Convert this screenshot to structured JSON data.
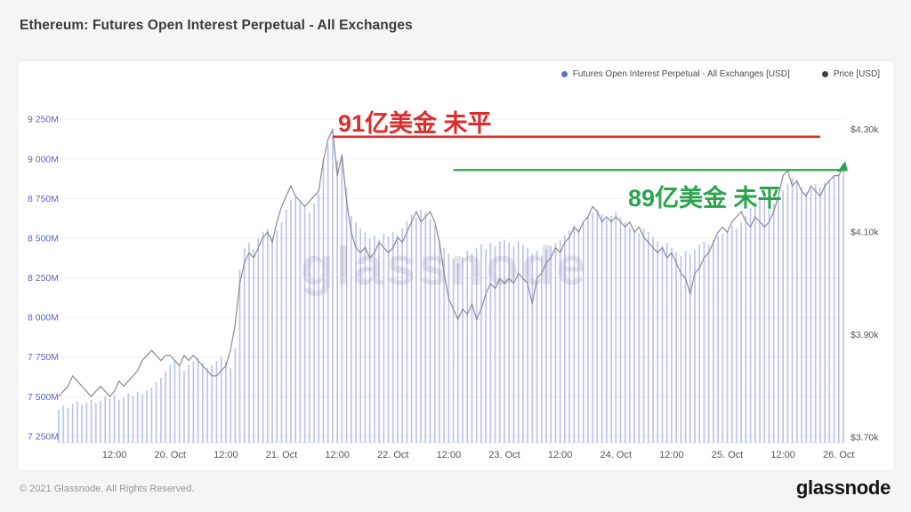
{
  "header": {
    "title": "Ethereum: Futures Open Interest Perpetual - All Exchanges"
  },
  "footer": {
    "copyright": "© 2021 Glassnode. All Rights Reserved.",
    "logo": "glassnode"
  },
  "colors": {
    "oi_bar": "#7c8cde",
    "price_line": "#8a8a93",
    "left_axis_label": "#5c63c8",
    "right_axis_label": "#55555a",
    "annotation_red": "#dd2c2c",
    "annotation_green": "#2aa54d",
    "gridline": "#f1f1f4"
  },
  "chart_data": {
    "type": "bar",
    "subtype": "bar+line combo, hourly time series",
    "title": "Ethereum: Futures Open Interest Perpetual - All Exchanges",
    "watermark": "glassnode",
    "x_start": "19. Oct 00:00",
    "x_step_hours": 1,
    "x_tick_labels": [
      {
        "h": 12,
        "label": "12:00"
      },
      {
        "h": 24,
        "label": "20. Oct"
      },
      {
        "h": 36,
        "label": "12:00"
      },
      {
        "h": 48,
        "label": "21. Oct"
      },
      {
        "h": 60,
        "label": "12:00"
      },
      {
        "h": 72,
        "label": "22. Oct"
      },
      {
        "h": 84,
        "label": "12:00"
      },
      {
        "h": 96,
        "label": "23. Oct"
      },
      {
        "h": 108,
        "label": "12:00"
      },
      {
        "h": 120,
        "label": "24. Oct"
      },
      {
        "h": 132,
        "label": "12:00"
      },
      {
        "h": 144,
        "label": "25. Oct"
      },
      {
        "h": 156,
        "label": "12:00"
      },
      {
        "h": 168,
        "label": "26. Oct"
      }
    ],
    "left_axis": {
      "unit": "M USD",
      "tick_labels": [
        "7 250M",
        "7 500M",
        "7 750M",
        "8 000M",
        "8 250M",
        "8 500M",
        "8 750M",
        "9 000M",
        "9 250M"
      ],
      "tick_values": [
        7250,
        7500,
        7750,
        8000,
        8250,
        8500,
        8750,
        9000,
        9250
      ],
      "range": [
        7210,
        9380
      ],
      "grid": true
    },
    "right_axis": {
      "unit": "k USD",
      "tick_labels": [
        "$3.70k",
        "$3.90k",
        "$4.10k",
        "$4.30k"
      ],
      "tick_values": [
        3.7,
        3.9,
        4.1,
        4.3
      ],
      "range": [
        3.69,
        4.36
      ],
      "grid": false
    },
    "legend_position": "top-right",
    "series": [
      {
        "name": "Futures Open Interest Perpetual - All Exchanges [USD]",
        "type": "bar",
        "axis": "left",
        "color": "#7c8cde",
        "unit": "M USD",
        "values": [
          7420,
          7445,
          7430,
          7455,
          7470,
          7450,
          7465,
          7480,
          7460,
          7475,
          7500,
          7490,
          7510,
          7480,
          7495,
          7520,
          7505,
          7530,
          7515,
          7540,
          7560,
          7590,
          7620,
          7660,
          7700,
          7730,
          7690,
          7665,
          7700,
          7720,
          7745,
          7710,
          7680,
          7700,
          7725,
          7750,
          7720,
          7680,
          7805,
          8300,
          8440,
          8470,
          8430,
          8500,
          8540,
          8560,
          8510,
          8550,
          8600,
          8680,
          8740,
          8760,
          8730,
          8700,
          8660,
          8720,
          8780,
          9000,
          9090,
          9140,
          8990,
          9030,
          8820,
          8640,
          8600,
          8560,
          8540,
          8500,
          8520,
          8490,
          8530,
          8510,
          8540,
          8520,
          8560,
          8610,
          8650,
          8630,
          8680,
          8660,
          8620,
          8580,
          8480,
          8440,
          8400,
          8370,
          8340,
          8380,
          8420,
          8400,
          8440,
          8460,
          8430,
          8470,
          8450,
          8480,
          8490,
          8470,
          8450,
          8480,
          8460,
          8440,
          8400,
          8420,
          8390,
          8430,
          8450,
          8470,
          8490,
          8520,
          8550,
          8580,
          8560,
          8600,
          8630,
          8660,
          8680,
          8650,
          8620,
          8640,
          8660,
          8630,
          8600,
          8570,
          8550,
          8530,
          8560,
          8540,
          8510,
          8480,
          8450,
          8470,
          8440,
          8410,
          8390,
          8420,
          8400,
          8430,
          8460,
          8480,
          8460,
          8490,
          8510,
          8530,
          8550,
          8580,
          8560,
          8600,
          8640,
          8690,
          8730,
          8760,
          8740,
          8700,
          8720,
          8760,
          8800,
          8840,
          8880,
          8850,
          8820,
          8790,
          8810,
          8840,
          8820,
          8850,
          8870,
          8890,
          8900,
          8920
        ]
      },
      {
        "name": "Price [USD]",
        "type": "line",
        "axis": "right",
        "color": "#8a8a93",
        "unit": "k USD",
        "values": [
          3.78,
          3.79,
          3.8,
          3.82,
          3.81,
          3.8,
          3.79,
          3.78,
          3.79,
          3.8,
          3.79,
          3.78,
          3.79,
          3.81,
          3.8,
          3.81,
          3.82,
          3.83,
          3.85,
          3.86,
          3.87,
          3.86,
          3.85,
          3.86,
          3.86,
          3.85,
          3.84,
          3.86,
          3.85,
          3.86,
          3.85,
          3.84,
          3.83,
          3.82,
          3.82,
          3.83,
          3.84,
          3.87,
          3.92,
          4.0,
          4.04,
          4.06,
          4.05,
          4.07,
          4.09,
          4.1,
          4.08,
          4.12,
          4.15,
          4.17,
          4.19,
          4.17,
          4.16,
          4.15,
          4.16,
          4.17,
          4.18,
          4.24,
          4.28,
          4.3,
          4.21,
          4.25,
          4.16,
          4.1,
          4.07,
          4.06,
          4.07,
          4.05,
          4.06,
          4.08,
          4.07,
          4.06,
          4.07,
          4.09,
          4.08,
          4.1,
          4.12,
          4.14,
          4.12,
          4.13,
          4.14,
          4.12,
          4.08,
          4.02,
          3.97,
          3.95,
          3.93,
          3.95,
          3.94,
          3.96,
          3.93,
          3.95,
          3.98,
          4.0,
          3.99,
          4.01,
          4.0,
          4.01,
          4.0,
          4.02,
          4.01,
          4.0,
          3.96,
          4.01,
          4.02,
          4.04,
          4.05,
          4.07,
          4.06,
          4.08,
          4.09,
          4.11,
          4.1,
          4.12,
          4.13,
          4.15,
          4.14,
          4.12,
          4.13,
          4.12,
          4.13,
          4.12,
          4.11,
          4.12,
          4.1,
          4.11,
          4.09,
          4.08,
          4.07,
          4.06,
          4.07,
          4.05,
          4.06,
          4.04,
          4.02,
          4.01,
          3.98,
          4.02,
          4.03,
          4.05,
          4.06,
          4.08,
          4.1,
          4.11,
          4.1,
          4.12,
          4.13,
          4.14,
          4.12,
          4.11,
          4.13,
          4.12,
          4.11,
          4.12,
          4.14,
          4.17,
          4.21,
          4.22,
          4.19,
          4.2,
          4.18,
          4.17,
          4.19,
          4.18,
          4.17,
          4.19,
          4.2,
          4.21,
          4.21,
          4.23
        ]
      }
    ],
    "annotations": [
      {
        "id": "red-level",
        "text": "91亿美金 未平",
        "color": "#dd2c2c",
        "line_value_m": 9140,
        "from_hour": 59,
        "to_hour": 164
      },
      {
        "id": "green-level",
        "text": "89亿美金 未平",
        "color": "#2aa54d",
        "line_value_m": 8930,
        "from_hour": 85,
        "to_hour": 169
      }
    ]
  }
}
